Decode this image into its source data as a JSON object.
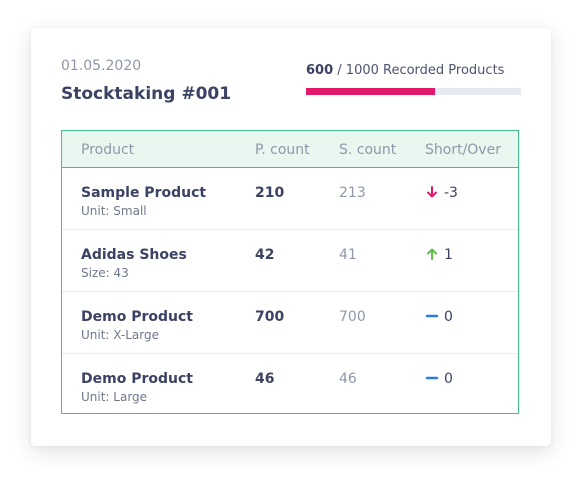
{
  "header": {
    "date": "01.05.2020",
    "title": "Stocktaking #001"
  },
  "progress": {
    "recorded": "600",
    "total_text": "/ 1000 Recorded Products",
    "fraction": 0.6,
    "color_fill": "#e0196b",
    "color_track": "#e6eaf0"
  },
  "table": {
    "columns": [
      "Product",
      "P. count",
      "S. count",
      "Short/Over"
    ],
    "rows": [
      {
        "name": "Sample Product",
        "sub": "Unit: Small",
        "p_count": "210",
        "s_count": "213",
        "diff": "-3",
        "trend": "down-arrow-icon"
      },
      {
        "name": "Adidas Shoes",
        "sub": "Size: 43",
        "p_count": "42",
        "s_count": "41",
        "diff": "1",
        "trend": "up-arrow-icon"
      },
      {
        "name": "Demo Product",
        "sub": "Unit: X-Large",
        "p_count": "700",
        "s_count": "700",
        "diff": "0",
        "trend": "dash-icon"
      },
      {
        "name": "Demo Product",
        "sub": "Unit: Large",
        "p_count": "46",
        "s_count": "46",
        "diff": "0",
        "trend": "dash-icon"
      }
    ],
    "colors": {
      "border": "#43c08c",
      "header_bg": "#e8f7ef",
      "down": "#e0196b",
      "up": "#5cc04a",
      "neutral": "#2979e8"
    }
  }
}
